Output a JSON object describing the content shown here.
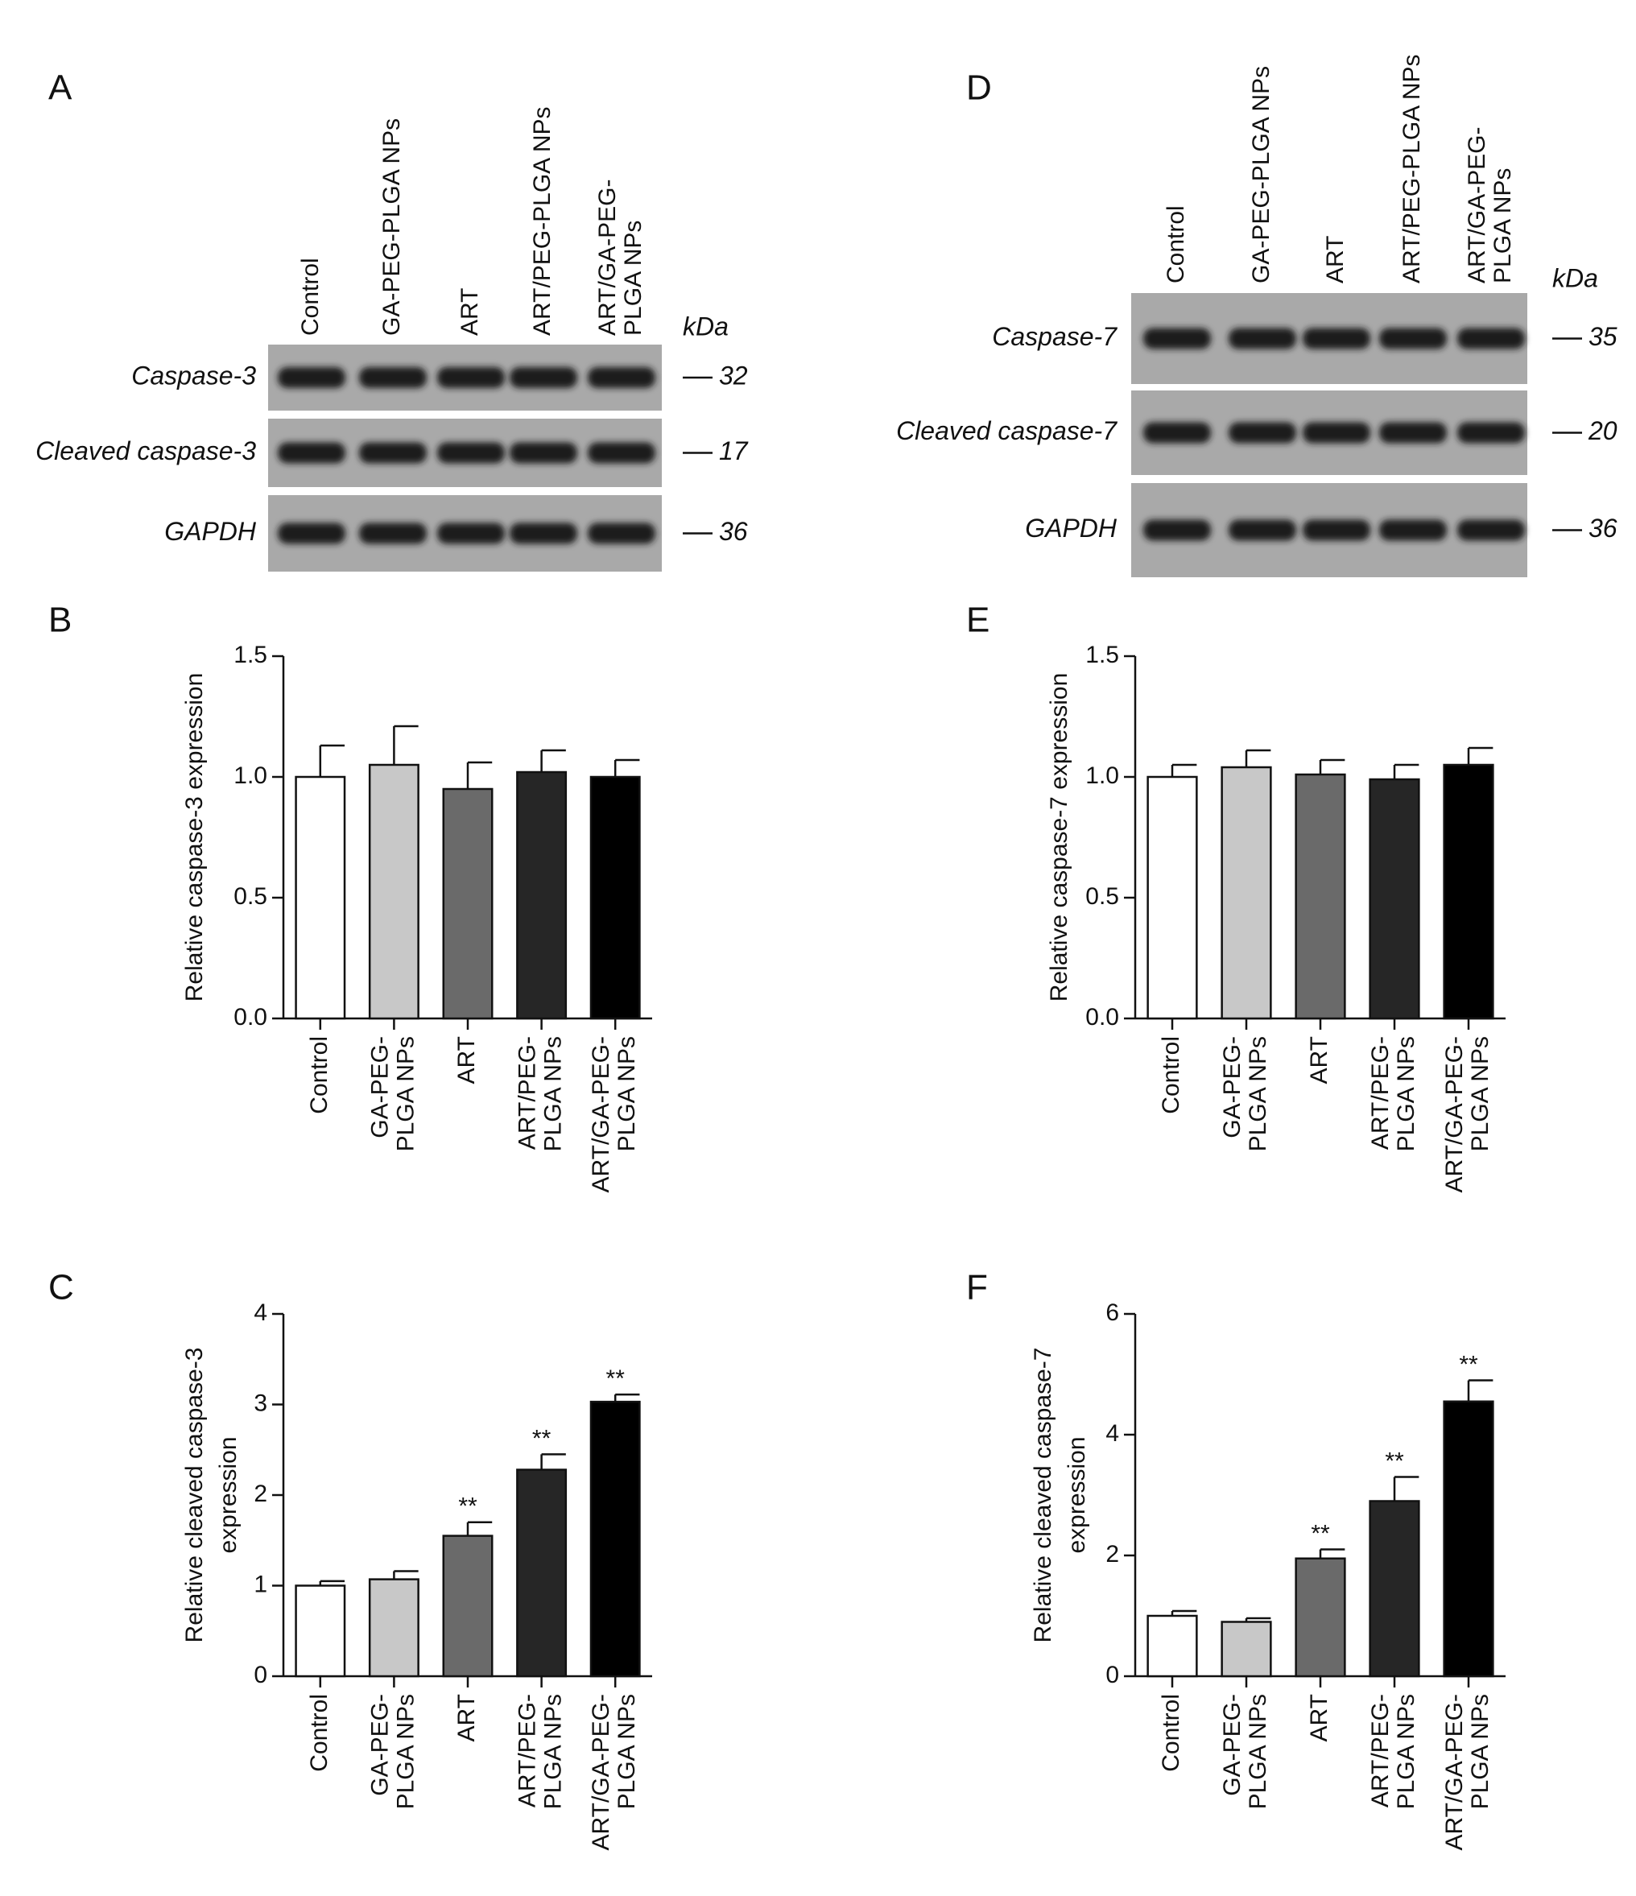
{
  "blots": [
    {
      "panel": "A",
      "unit": "kDa",
      "lanes": [
        [
          "Control"
        ],
        [
          "GA-PEG-PLGA NPs"
        ],
        [
          "ART"
        ],
        [
          "ART/PEG-PLGA NPs"
        ],
        [
          "ART/GA-PEG-",
          "PLGA NPs"
        ]
      ],
      "rows": [
        {
          "name": "Caspase-3",
          "kda": 32
        },
        {
          "name": "Cleaved caspase-3",
          "kda": 17
        },
        {
          "name": "GAPDH",
          "kda": 36
        }
      ]
    },
    {
      "panel": "D",
      "unit": "kDa",
      "lanes": [
        [
          "Control"
        ],
        [
          "GA-PEG-PLGA NPs"
        ],
        [
          "ART"
        ],
        [
          "ART/PEG-PLGA NPs"
        ],
        [
          "ART/GA-PEG-",
          "PLGA NPs"
        ]
      ],
      "rows": [
        {
          "name": "Caspase-7",
          "kda": 35
        },
        {
          "name": "Cleaved caspase-7",
          "kda": 20
        },
        {
          "name": "GAPDH",
          "kda": 36
        }
      ]
    }
  ],
  "chart_data": [
    {
      "type": "bar",
      "panel": "B",
      "ylabel": [
        "Relative caspase-3 expression"
      ],
      "categories": [
        [
          "Control"
        ],
        [
          "GA-PEG-",
          "PLGA NPs"
        ],
        [
          "ART"
        ],
        [
          "ART/PEG-",
          "PLGA NPs"
        ],
        [
          "ART/GA-PEG-",
          "PLGA NPs"
        ]
      ],
      "values": [
        1.0,
        1.05,
        0.95,
        1.02,
        1.0
      ],
      "errors": [
        0.13,
        0.16,
        0.11,
        0.09,
        0.07
      ],
      "colors": [
        "#ffffff",
        "#c8c8c8",
        "#6a6a6a",
        "#262626",
        "#000000"
      ],
      "ylim": [
        0,
        1.5
      ],
      "yticks": [
        {
          "value": 0,
          "label": "0.0"
        },
        0.5,
        {
          "value": 1,
          "label": "1.0"
        },
        1.5
      ]
    },
    {
      "type": "bar",
      "panel": "C",
      "ylabel": [
        "Relative cleaved caspase-3",
        "expression"
      ],
      "categories": [
        [
          "Control"
        ],
        [
          "GA-PEG-",
          "PLGA NPs"
        ],
        [
          "ART"
        ],
        [
          "ART/PEG-",
          "PLGA NPs"
        ],
        [
          "ART/GA-PEG-",
          "PLGA NPs"
        ]
      ],
      "values": [
        1.0,
        1.07,
        1.55,
        2.28,
        3.03
      ],
      "errors": [
        0.05,
        0.09,
        0.15,
        0.17,
        0.08
      ],
      "significance": [
        null,
        null,
        "**",
        "**",
        "**"
      ],
      "colors": [
        "#ffffff",
        "#c8c8c8",
        "#6a6a6a",
        "#262626",
        "#000000"
      ],
      "ylim": [
        0,
        4
      ],
      "yticks": [
        0,
        1,
        2,
        3,
        4
      ]
    },
    {
      "type": "bar",
      "panel": "E",
      "ylabel": [
        "Relative caspase-7 expression"
      ],
      "categories": [
        [
          "Control"
        ],
        [
          "GA-PEG-",
          "PLGA NPs"
        ],
        [
          "ART"
        ],
        [
          "ART/PEG-",
          "PLGA NPs"
        ],
        [
          "ART/GA-PEG-",
          "PLGA NPs"
        ]
      ],
      "values": [
        1.0,
        1.04,
        1.01,
        0.99,
        1.05
      ],
      "errors": [
        0.05,
        0.07,
        0.06,
        0.06,
        0.07
      ],
      "colors": [
        "#ffffff",
        "#c8c8c8",
        "#6a6a6a",
        "#262626",
        "#000000"
      ],
      "ylim": [
        0,
        1.5
      ],
      "yticks": [
        {
          "value": 0,
          "label": "0.0"
        },
        0.5,
        {
          "value": 1,
          "label": "1.0"
        },
        1.5
      ]
    },
    {
      "type": "bar",
      "panel": "F",
      "ylabel": [
        "Relative cleaved caspase-7",
        "expression"
      ],
      "categories": [
        [
          "Control"
        ],
        [
          "GA-PEG-",
          "PLGA NPs"
        ],
        [
          "ART"
        ],
        [
          "ART/PEG-",
          "PLGA NPs"
        ],
        [
          "ART/GA-PEG-",
          "PLGA NPs"
        ]
      ],
      "values": [
        1.0,
        0.9,
        1.95,
        2.9,
        4.55
      ],
      "errors": [
        0.08,
        0.06,
        0.15,
        0.4,
        0.35
      ],
      "significance": [
        null,
        null,
        "**",
        "**",
        "**"
      ],
      "colors": [
        "#ffffff",
        "#c8c8c8",
        "#6a6a6a",
        "#262626",
        "#000000"
      ],
      "ylim": [
        0,
        6
      ],
      "yticks": [
        0,
        2,
        4,
        6
      ]
    }
  ]
}
